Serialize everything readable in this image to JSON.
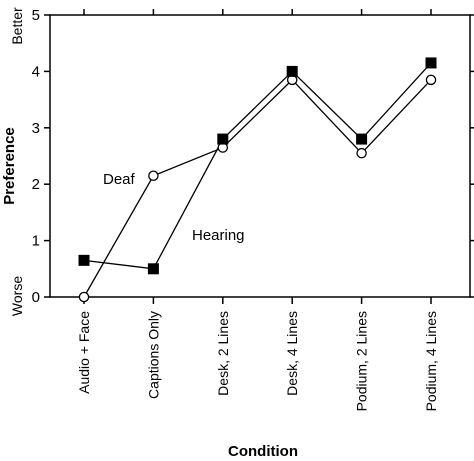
{
  "chart_data": {
    "type": "line",
    "xlabel": "Condition",
    "ylabel": "Preference",
    "y_extreme_labels": {
      "top": "Better",
      "bottom": "Worse"
    },
    "ylim": [
      0,
      5
    ],
    "yticks": [
      "0",
      "1",
      "2",
      "3",
      "4",
      "5"
    ],
    "grid": false,
    "legend": "none",
    "categories": [
      "Audio + Face",
      "Captions Only",
      "Desk, 2 Lines",
      "Desk, 4 Lines",
      "Podium, 2 Lines",
      "Podium, 4 Lines"
    ],
    "series": [
      {
        "name": "Deaf",
        "marker": "open-circle",
        "values": [
          0.0,
          2.15,
          2.65,
          3.85,
          2.55,
          3.85
        ]
      },
      {
        "name": "Hearing",
        "marker": "filled-square",
        "values": [
          0.65,
          0.5,
          2.8,
          4.0,
          2.8,
          4.15
        ]
      }
    ]
  }
}
